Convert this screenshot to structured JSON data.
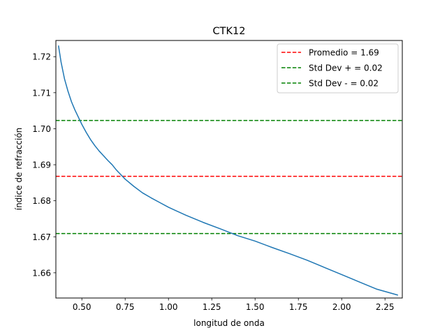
{
  "chart_data": {
    "type": "line",
    "title": "CTK12",
    "xlabel": "longitud de onda",
    "ylabel": "índice de refracción",
    "xlim": [
      0.35,
      2.35
    ],
    "ylim": [
      1.653,
      1.7245
    ],
    "x_ticks": [
      0.5,
      0.75,
      1.0,
      1.25,
      1.5,
      1.75,
      2.0,
      2.25
    ],
    "x_tick_labels": [
      "0.50",
      "0.75",
      "1.00",
      "1.25",
      "1.50",
      "1.75",
      "2.00",
      "2.25"
    ],
    "y_ticks": [
      1.66,
      1.67,
      1.68,
      1.69,
      1.7,
      1.71,
      1.72
    ],
    "y_tick_labels": [
      "1.66",
      "1.67",
      "1.68",
      "1.69",
      "1.70",
      "1.71",
      "1.72"
    ],
    "grid": false,
    "legend_position": "top-right",
    "series": [
      {
        "color": "#1f77b4",
        "style": "solid",
        "x": [
          0.365,
          0.38,
          0.4,
          0.42,
          0.44,
          0.46,
          0.48,
          0.5,
          0.525,
          0.55,
          0.575,
          0.6,
          0.625,
          0.65,
          0.675,
          0.7,
          0.75,
          0.8,
          0.85,
          0.9,
          0.95,
          1.0,
          1.1,
          1.2,
          1.3,
          1.4,
          1.5,
          1.6,
          1.7,
          1.8,
          1.9,
          2.0,
          2.1,
          2.2,
          2.325
        ],
        "y": [
          1.7231,
          1.7185,
          1.7138,
          1.7104,
          1.7075,
          1.7052,
          1.7032,
          1.7012,
          1.699,
          1.697,
          1.6953,
          1.6938,
          1.6925,
          1.6912,
          1.69,
          1.6885,
          1.686,
          1.684,
          1.6822,
          1.6808,
          1.6795,
          1.6782,
          1.676,
          1.674,
          1.6722,
          1.6703,
          1.6688,
          1.667,
          1.6653,
          1.6635,
          1.6615,
          1.6595,
          1.6575,
          1.6555,
          1.6538
        ]
      }
    ],
    "reference_lines": [
      {
        "name": "Promedio = 1.69",
        "y": 1.6868,
        "color": "#ff0000",
        "style": "dashed"
      },
      {
        "name": "Std Dev + = 0.02",
        "y": 1.7023,
        "color": "#008000",
        "style": "dashed"
      },
      {
        "name": "Std Dev - = 0.02",
        "y": 1.6709,
        "color": "#008000",
        "style": "dashed"
      }
    ]
  }
}
